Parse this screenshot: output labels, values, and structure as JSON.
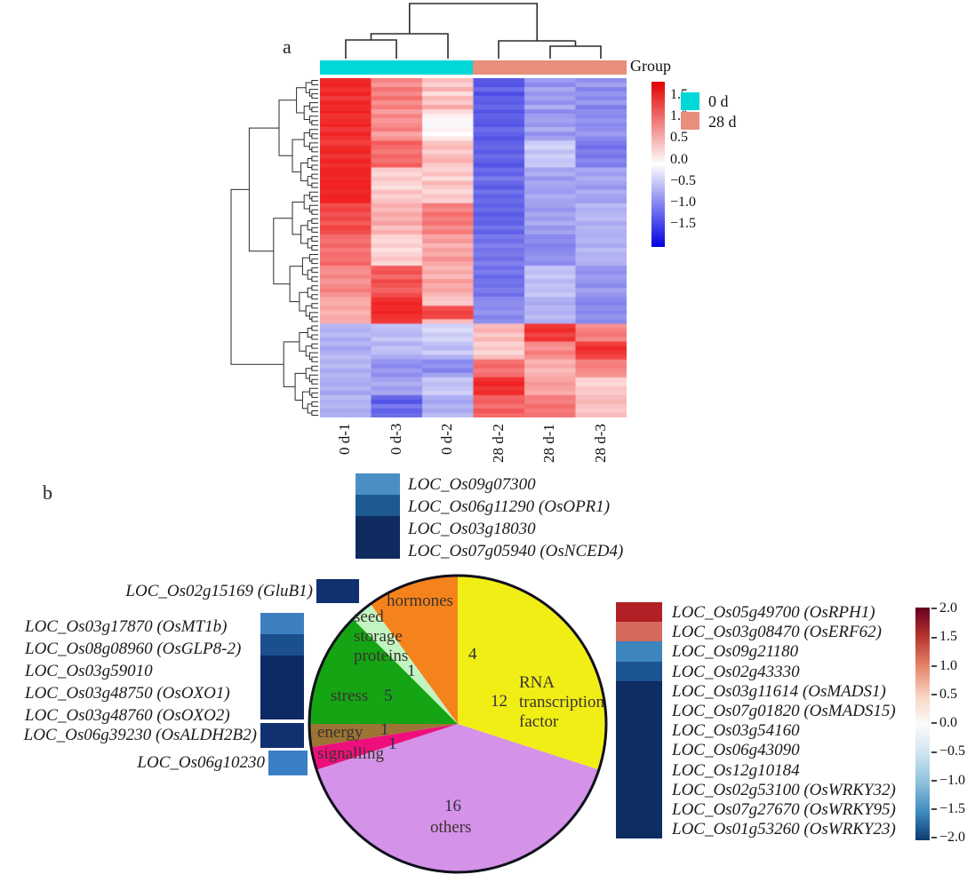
{
  "chart_data": [
    {
      "type": "heatmap",
      "panel": "a",
      "columns": [
        "0 d-1",
        "0 d-3",
        "0 d-2",
        "28 d-2",
        "28 d-1",
        "28 d-3"
      ],
      "legend_title": "Group",
      "groups": [
        {
          "label": "0 d",
          "color": "#00d7d7",
          "columns": 3
        },
        {
          "label": "28 d",
          "color": "#e78f7b",
          "columns": 3
        }
      ],
      "colorbar_ticks": [
        "1.5",
        "1.0",
        "0.5",
        "0.0",
        "−0.5",
        "−1.0",
        "−1.5"
      ],
      "value_range": [
        -1.5,
        1.5
      ],
      "rows": [
        [
          1.45,
          0.85,
          0.45,
          -1.25,
          -0.75,
          -0.85
        ],
        [
          1.5,
          0.7,
          0.3,
          -1.3,
          -0.9,
          -0.7
        ],
        [
          1.4,
          0.95,
          0.55,
          -1.1,
          -0.65,
          -0.95
        ],
        [
          1.5,
          0.8,
          0.2,
          -1.35,
          -0.8,
          -0.8
        ],
        [
          1.35,
          1.0,
          0.5,
          -1.2,
          -0.7,
          -0.9
        ],
        [
          1.5,
          0.75,
          0.35,
          -1.25,
          -0.85,
          -0.75
        ],
        [
          1.45,
          0.9,
          0.6,
          -1.15,
          -0.6,
          -1.0
        ],
        [
          1.5,
          0.65,
          0.25,
          -1.3,
          -0.9,
          -0.85
        ],
        [
          1.4,
          0.85,
          0.1,
          -1.2,
          -0.75,
          -0.9
        ],
        [
          1.45,
          0.7,
          0.05,
          -1.25,
          -0.7,
          -0.8
        ],
        [
          1.5,
          0.8,
          -0.05,
          -1.3,
          -0.8,
          -0.9
        ],
        [
          1.35,
          0.9,
          0.1,
          -1.1,
          -0.6,
          -0.85
        ],
        [
          1.5,
          0.6,
          0.0,
          -1.2,
          -0.85,
          -0.75
        ],
        [
          1.4,
          0.75,
          0.15,
          -1.3,
          -0.7,
          -0.9
        ],
        [
          1.3,
          1.1,
          0.4,
          -1.2,
          -0.4,
          -1.0
        ],
        [
          1.45,
          1.0,
          0.5,
          -1.15,
          -0.3,
          -1.1
        ],
        [
          1.5,
          0.9,
          0.3,
          -1.25,
          -0.5,
          -0.95
        ],
        [
          1.35,
          1.05,
          0.45,
          -1.1,
          -0.35,
          -1.05
        ],
        [
          1.5,
          0.95,
          0.55,
          -1.2,
          -0.45,
          -0.9
        ],
        [
          1.4,
          1.1,
          0.35,
          -1.3,
          -0.4,
          -1.0
        ],
        [
          1.5,
          0.35,
          0.3,
          -1.1,
          -0.7,
          -0.65
        ],
        [
          1.5,
          0.25,
          0.45,
          -1.2,
          -0.6,
          -0.75
        ],
        [
          1.45,
          0.4,
          0.2,
          -1.0,
          -0.8,
          -0.6
        ],
        [
          1.5,
          0.3,
          0.5,
          -1.15,
          -0.65,
          -0.7
        ],
        [
          1.5,
          0.2,
          0.35,
          -1.25,
          -0.7,
          -0.8
        ],
        [
          1.45,
          0.45,
          0.25,
          -1.05,
          -0.75,
          -0.6
        ],
        [
          1.5,
          0.3,
          0.4,
          -1.2,
          -0.6,
          -0.7
        ],
        [
          1.5,
          0.4,
          0.3,
          -1.1,
          -0.7,
          -0.75
        ],
        [
          1.2,
          0.55,
          0.9,
          -1.2,
          -0.7,
          -0.5
        ],
        [
          1.3,
          0.45,
          0.8,
          -1.1,
          -0.8,
          -0.6
        ],
        [
          1.15,
          0.6,
          1.0,
          -1.25,
          -0.65,
          -0.55
        ],
        [
          1.25,
          0.5,
          0.85,
          -1.15,
          -0.75,
          -0.5
        ],
        [
          1.1,
          0.65,
          0.95,
          -1.2,
          -0.6,
          -0.65
        ],
        [
          1.3,
          0.4,
          0.75,
          -1.05,
          -0.8,
          -0.55
        ],
        [
          1.2,
          0.55,
          0.9,
          -1.2,
          -0.7,
          -0.6
        ],
        [
          1.0,
          0.3,
          0.6,
          -1.0,
          -0.9,
          -0.6
        ],
        [
          0.95,
          0.25,
          0.7,
          -1.1,
          -0.85,
          -0.55
        ],
        [
          1.05,
          0.35,
          0.5,
          -0.95,
          -0.95,
          -0.65
        ],
        [
          0.9,
          0.2,
          0.65,
          -1.05,
          -0.9,
          -0.5
        ],
        [
          1.0,
          0.3,
          0.55,
          -1.0,
          -0.85,
          -0.6
        ],
        [
          0.95,
          0.4,
          0.75,
          -1.1,
          -0.8,
          -0.55
        ],
        [
          1.05,
          0.25,
          0.6,
          -0.95,
          -0.9,
          -0.6
        ],
        [
          0.8,
          1.1,
          0.5,
          -1.1,
          -0.45,
          -0.8
        ],
        [
          0.75,
          1.2,
          0.6,
          -1.0,
          -0.5,
          -0.85
        ],
        [
          0.85,
          1.0,
          0.45,
          -1.15,
          -0.4,
          -0.75
        ],
        [
          0.7,
          1.25,
          0.7,
          -1.05,
          -0.55,
          -0.8
        ],
        [
          0.8,
          1.15,
          0.55,
          -1.1,
          -0.45,
          -0.9
        ],
        [
          0.9,
          1.05,
          0.65,
          -1.0,
          -0.5,
          -0.7
        ],
        [
          0.75,
          1.2,
          0.5,
          -1.1,
          -0.4,
          -0.8
        ],
        [
          0.6,
          1.4,
          0.4,
          -0.9,
          -0.6,
          -0.9
        ],
        [
          0.55,
          1.5,
          0.35,
          -0.85,
          -0.65,
          -0.95
        ],
        [
          0.65,
          1.45,
          1.2,
          -0.9,
          -0.55,
          -0.85
        ],
        [
          0.5,
          1.5,
          1.3,
          -0.8,
          -0.6,
          -0.9
        ],
        [
          0.6,
          1.4,
          1.25,
          -0.95,
          -0.5,
          -0.8
        ],
        [
          0.55,
          1.35,
          0.45,
          -0.85,
          -0.6,
          -0.9
        ],
        [
          -0.55,
          -0.45,
          -0.35,
          0.45,
          1.35,
          0.75
        ],
        [
          -0.6,
          -0.5,
          -0.25,
          0.55,
          1.45,
          0.85
        ],
        [
          -0.5,
          -0.55,
          -0.4,
          0.35,
          1.25,
          0.95
        ],
        [
          -0.65,
          -0.4,
          -0.3,
          0.5,
          1.4,
          0.8
        ],
        [
          -0.55,
          -0.6,
          -0.45,
          0.3,
          0.8,
          1.3
        ],
        [
          -0.7,
          -0.45,
          -0.55,
          0.4,
          0.7,
          1.45
        ],
        [
          -0.6,
          -0.5,
          -0.35,
          0.25,
          0.9,
          1.35
        ],
        [
          -0.5,
          -0.65,
          -0.6,
          0.45,
          0.75,
          1.25
        ],
        [
          -0.6,
          -0.8,
          -0.9,
          0.95,
          0.5,
          0.85
        ],
        [
          -0.5,
          -0.9,
          -0.8,
          1.05,
          0.6,
          0.9
        ],
        [
          -0.65,
          -0.75,
          -0.95,
          0.9,
          0.45,
          0.8
        ],
        [
          -0.55,
          -0.85,
          -0.7,
          1.0,
          0.55,
          0.75
        ],
        [
          -0.6,
          -0.7,
          -0.4,
          1.4,
          0.6,
          0.3
        ],
        [
          -0.65,
          -0.6,
          -0.5,
          1.5,
          0.7,
          0.25
        ],
        [
          -0.55,
          -0.75,
          -0.45,
          1.35,
          0.65,
          0.4
        ],
        [
          -0.7,
          -0.65,
          -0.35,
          1.45,
          0.55,
          0.35
        ],
        [
          -0.5,
          -1.15,
          -0.6,
          1.05,
          0.9,
          0.45
        ],
        [
          -0.6,
          -1.3,
          -0.7,
          1.1,
          0.85,
          0.5
        ],
        [
          -0.55,
          -1.0,
          -0.55,
          0.95,
          1.0,
          0.4
        ],
        [
          -0.65,
          -1.2,
          -0.65,
          1.15,
          0.9,
          0.35
        ],
        [
          -0.6,
          -1.1,
          -0.5,
          1.0,
          0.95,
          0.45
        ]
      ]
    },
    {
      "type": "pie",
      "panel": "b",
      "total": 40,
      "slices": [
        {
          "name": "RNA transcription factor",
          "value": 12,
          "color": "#f1ee16",
          "label_lines": [
            "RNA",
            "transcription",
            "factor"
          ]
        },
        {
          "name": "others",
          "value": 16,
          "color": "#d492e8",
          "label_lines": [
            "others"
          ]
        },
        {
          "name": "signalling",
          "value": 1,
          "color": "#ee0f7d",
          "label_lines": [
            "signalling"
          ]
        },
        {
          "name": "energy",
          "value": 1,
          "color": "#9c7433",
          "label_lines": [
            "energy"
          ]
        },
        {
          "name": "stress",
          "value": 5,
          "color": "#14a414",
          "label_lines": [
            "stress"
          ]
        },
        {
          "name": "seed storage proteins",
          "value": 1,
          "color": "#c2f4c2",
          "label_lines": [
            "seed",
            "storage",
            "proteins"
          ]
        },
        {
          "name": "hormones",
          "value": 4,
          "color": "#f5831c",
          "label_lines": [
            "hormones"
          ]
        }
      ]
    }
  ],
  "panel_a": {
    "label": "a",
    "legend_title": "Group"
  },
  "panel_b": {
    "label": "b",
    "hormone_genes": [
      {
        "label": "LOC_Os09g07300",
        "color": "#4a8fc4"
      },
      {
        "label": "LOC_Os06g11290 (OsOPR1)",
        "color": "#1d5a92"
      },
      {
        "label": "LOC_Os03g18030",
        "color": "#0e2a5e"
      },
      {
        "label": "LOC_Os07g05940 (OsNCED4)",
        "color": "#0e2a5e"
      }
    ],
    "seed_storage_gene": {
      "label": "LOC_Os02g15169 (GluB1)",
      "color": "#10306e"
    },
    "stress_genes": [
      {
        "label": "LOC_Os03g17870 (OsMT1b)",
        "color": "#3c80c0"
      },
      {
        "label": "LOC_Os08g08960 (OsGLP8-2)",
        "color": "#1b4f8e"
      },
      {
        "label": "LOC_Os03g59010",
        "color": "#0d2a66"
      },
      {
        "label": "LOC_Os03g48750 (OsOXO1)",
        "color": "#0d2a66"
      },
      {
        "label": "LOC_Os03g48760 (OsOXO2)",
        "color": "#0d2a66"
      }
    ],
    "energy_gene": {
      "label": "LOC_Os06g39230 (OsALDH2B2)",
      "color": "#103070"
    },
    "signalling_gene": {
      "label": "LOC_Os06g10230",
      "color": "#3a7ec6"
    },
    "rna_genes": [
      {
        "label": "LOC_Os05g49700 (OsRPH1)",
        "color": "#b02025"
      },
      {
        "label": "LOC_Os03g08470 (OsERF62)",
        "color": "#d4695c"
      },
      {
        "label": "LOC_Os09g21180",
        "color": "#3c85bd"
      },
      {
        "label": "LOC_Os02g43330",
        "color": "#1c5391"
      },
      {
        "label": "LOC_Os03g11614 (OsMADS1)",
        "color": "#0e2d62"
      },
      {
        "label": "LOC_Os07g01820 (OsMADS15)",
        "color": "#0e2d62"
      },
      {
        "label": "LOC_Os03g54160",
        "color": "#0e2d62"
      },
      {
        "label": "LOC_Os06g43090",
        "color": "#0e2d62"
      },
      {
        "label": "LOC_Os12g10184",
        "color": "#0e2d62"
      },
      {
        "label": "LOC_Os02g53100 (OsWRKY32)",
        "color": "#0e2d62"
      },
      {
        "label": "LOC_Os07g27670 (OsWRKY95)",
        "color": "#0e2d62"
      },
      {
        "label": "LOC_Os01g53260 (OsWRKY23)",
        "color": "#0e2d62"
      }
    ],
    "colorbar_ticks": [
      "2.0",
      "1.5",
      "1.0",
      "0.5",
      "0.0",
      "−0.5",
      "−1.0",
      "−1.5",
      "−2.0"
    ]
  }
}
